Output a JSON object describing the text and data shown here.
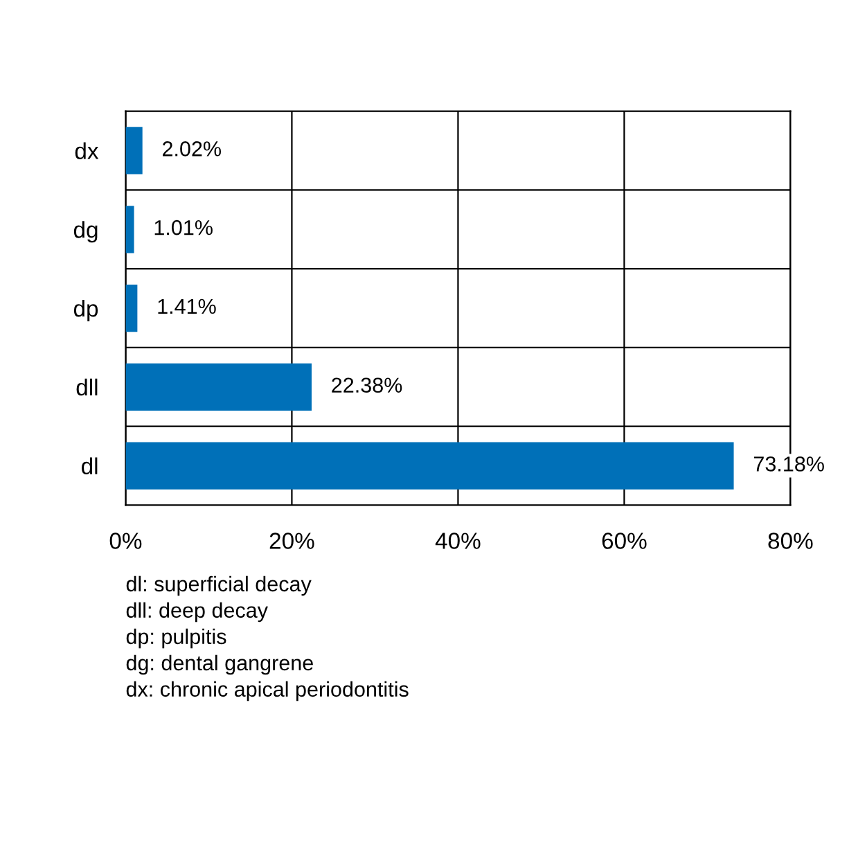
{
  "chart_data": {
    "type": "bar",
    "orientation": "horizontal",
    "categories": [
      "dx",
      "dg",
      "dp",
      "dll",
      "dl"
    ],
    "values": [
      2.02,
      1.01,
      1.41,
      22.38,
      73.18
    ],
    "value_labels": [
      "2.02%",
      "1.01%",
      "1.41%",
      "22.38%",
      "73.18%"
    ],
    "color": "#0070b8",
    "xlim": [
      0,
      80
    ],
    "xticks": [
      {
        "value": 0,
        "label": "0%"
      },
      {
        "value": 20,
        "label": "20%"
      },
      {
        "value": 40,
        "label": "40%"
      },
      {
        "value": 60,
        "label": "60%"
      },
      {
        "value": 80,
        "label": "80%"
      }
    ],
    "grid": true,
    "annotations": [
      "dl: superficial decay",
      "dll: deep decay",
      "dp: pulpitis",
      "dg: dental gangrene",
      "dx: chronic apical periodontitis"
    ]
  }
}
